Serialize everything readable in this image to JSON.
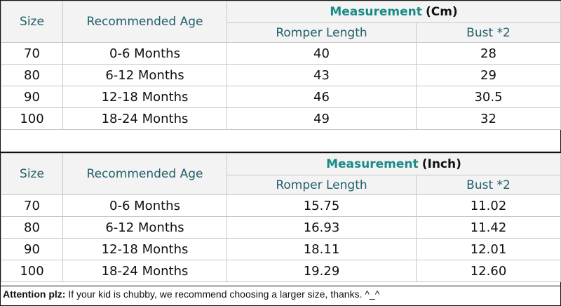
{
  "tables": [
    {
      "headers": {
        "size": "Size",
        "age": "Recommended Age",
        "measurement": "Measurement",
        "unit": "(Cm)",
        "romper": "Romper Length",
        "bust": "Bust *2"
      },
      "rows": [
        {
          "size": "70",
          "age": "0-6 Months",
          "romper": "40",
          "bust": "28"
        },
        {
          "size": "80",
          "age": "6-12 Months",
          "romper": "43",
          "bust": "29"
        },
        {
          "size": "90",
          "age": "12-18 Months",
          "romper": "46",
          "bust": "30.5"
        },
        {
          "size": "100",
          "age": "18-24 Months",
          "romper": "49",
          "bust": "32"
        }
      ]
    },
    {
      "headers": {
        "size": "Size",
        "age": "Recommended Age",
        "measurement": "Measurement",
        "unit": "(Inch)",
        "romper": "Romper Length",
        "bust": "Bust *2"
      },
      "rows": [
        {
          "size": "70",
          "age": "0-6 Months",
          "romper": "15.75",
          "bust": "11.02"
        },
        {
          "size": "80",
          "age": "6-12 Months",
          "romper": "16.93",
          "bust": "11.42"
        },
        {
          "size": "90",
          "age": "12-18 Months",
          "romper": "18.11",
          "bust": "12.01"
        },
        {
          "size": "100",
          "age": "18-24 Months",
          "romper": "19.29",
          "bust": "12.60"
        }
      ]
    }
  ],
  "note": {
    "label": "Attention plz:",
    "text": " If your kid is chubby, we recommend choosing a larger size, thanks. ^_^"
  }
}
